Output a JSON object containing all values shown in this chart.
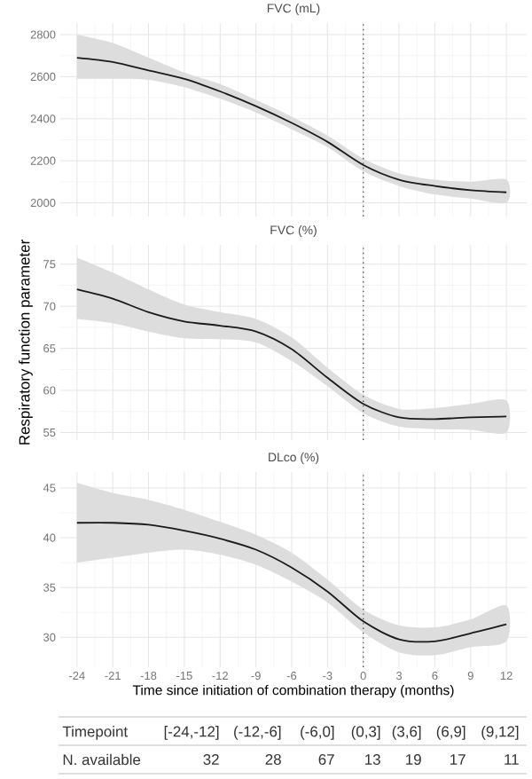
{
  "chart_data": [
    {
      "type": "line",
      "title": "FVC (mL)",
      "x": [
        -24,
        -21,
        -18,
        -15,
        -12,
        -9,
        -6,
        -3,
        0,
        3,
        6,
        9,
        12
      ],
      "series": [
        {
          "color": "#1a1a1a",
          "values": [
            2690,
            2670,
            2630,
            2590,
            2530,
            2460,
            2380,
            2290,
            2180,
            2110,
            2080,
            2060,
            2050
          ],
          "lower": [
            2590,
            2590,
            2585,
            2550,
            2495,
            2430,
            2350,
            2265,
            2150,
            2080,
            2040,
            2020,
            2000
          ],
          "upper": [
            2800,
            2760,
            2690,
            2620,
            2565,
            2490,
            2410,
            2320,
            2210,
            2140,
            2110,
            2100,
            2110
          ]
        }
      ],
      "xlim": [
        -25.4,
        13.7
      ],
      "xticks": [
        -24,
        -21,
        -18,
        -15,
        -12,
        -9,
        -6,
        -3,
        0,
        3,
        6,
        9,
        12
      ],
      "ylim": [
        1935,
        2855
      ],
      "yticks": [
        2000,
        2200,
        2400,
        2600,
        2800
      ],
      "grid": true,
      "tick_labels": "y",
      "marker": "none",
      "line_style": "solid",
      "ref_lines": [
        {
          "axis": "x",
          "value": 0,
          "label": null,
          "color": "#555555",
          "line_style": "dotted"
        }
      ]
    },
    {
      "type": "line",
      "title": "FVC (%)",
      "ylabel": "Respiratory function parameter",
      "x": [
        -24,
        -21,
        -18,
        -15,
        -12,
        -9,
        -6,
        -3,
        0,
        3,
        6,
        9,
        12
      ],
      "series": [
        {
          "color": "#1a1a1a",
          "values": [
            72,
            70.9,
            69.3,
            68.2,
            67.7,
            67.0,
            64.9,
            61.5,
            58.4,
            56.8,
            56.6,
            56.8,
            56.9
          ],
          "lower": [
            68.5,
            68,
            67,
            66.2,
            66.1,
            65.7,
            63.5,
            60.5,
            57.3,
            55.7,
            55.4,
            55.3,
            55
          ],
          "upper": [
            75.8,
            74,
            72,
            70.2,
            69.3,
            68.5,
            66.3,
            62.7,
            59.5,
            57.8,
            57.9,
            58.4,
            58.8
          ]
        }
      ],
      "xlim": [
        -25.4,
        13.7
      ],
      "xticks": [
        -24,
        -21,
        -18,
        -15,
        -12,
        -9,
        -6,
        -3,
        0,
        3,
        6,
        9,
        12
      ],
      "ylim": [
        54.1,
        77.3
      ],
      "yticks": [
        55,
        60,
        65,
        70,
        75
      ],
      "grid": true,
      "tick_labels": "y",
      "marker": "none",
      "line_style": "solid",
      "ref_lines": [
        {
          "axis": "x",
          "value": 0,
          "label": null,
          "color": "#555555",
          "line_style": "dotted"
        }
      ]
    },
    {
      "type": "line",
      "title": "DLco (%)",
      "xlabel": "Time since initiation of combination therapy (months)",
      "x": [
        -24,
        -21,
        -18,
        -15,
        -12,
        -9,
        -6,
        -3,
        0,
        3,
        6,
        9,
        12
      ],
      "series": [
        {
          "color": "#1a1a1a",
          "values": [
            41.5,
            41.5,
            41.3,
            40.7,
            39.9,
            38.8,
            37,
            34.6,
            31.6,
            29.8,
            29.6,
            30.4,
            31.3
          ],
          "lower": [
            37.5,
            38,
            38.5,
            38.8,
            38.3,
            37.3,
            35.6,
            33.5,
            30.5,
            28.5,
            28.2,
            29,
            29.6
          ],
          "upper": [
            45.5,
            44.5,
            43.8,
            42.8,
            41.6,
            40.3,
            38.5,
            35.8,
            32.8,
            31.2,
            31,
            31.8,
            33.2
          ]
        }
      ],
      "xlim": [
        -25.4,
        13.7
      ],
      "xticks": [
        -24,
        -21,
        -18,
        -15,
        -12,
        -9,
        -6,
        -3,
        0,
        3,
        6,
        9,
        12
      ],
      "ylim": [
        27,
        46.6
      ],
      "yticks": [
        30,
        35,
        40,
        45
      ],
      "grid": true,
      "marker": "none",
      "line_style": "solid",
      "ref_lines": [
        {
          "axis": "x",
          "value": 0,
          "label": null,
          "color": "#555555",
          "line_style": "dotted"
        }
      ],
      "annotations": [
        "Timepoint",
        "[-24,-12]",
        "(-12,-6]",
        "(-6,0]",
        "(0,3]",
        "(3,6]",
        "(6,9]",
        "(9,12]",
        "N. available",
        "32",
        "28",
        "67",
        "13",
        "19",
        "17",
        "11"
      ]
    }
  ]
}
